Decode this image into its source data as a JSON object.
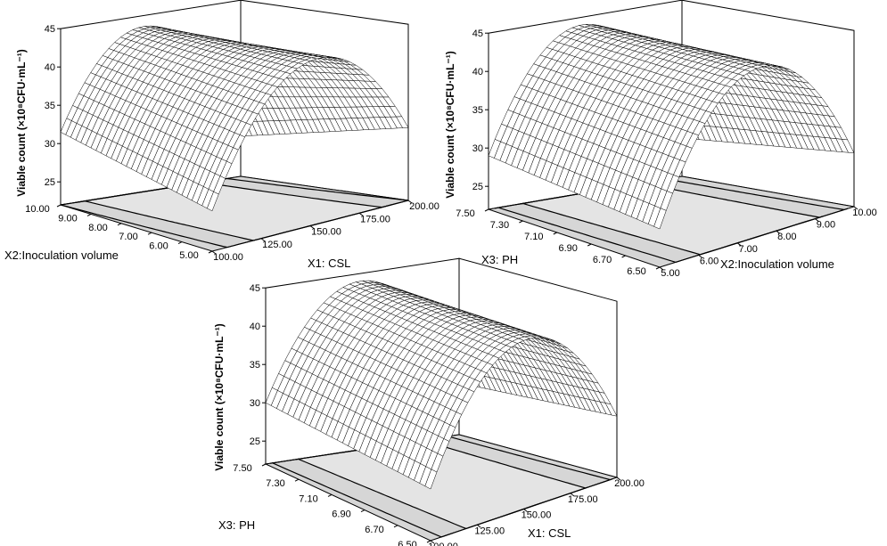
{
  "chart_data": [
    {
      "type": "surface",
      "panel": "top-left",
      "z_label": "Viable count (×10⁸CFU·mL⁻¹)",
      "z_ticks": [
        "25",
        "30",
        "35",
        "40",
        "45"
      ],
      "zlim": [
        22,
        45
      ],
      "x_axis": {
        "label": "X1: CSL",
        "ticks": [
          "100.00",
          "125.00",
          "150.00",
          "175.00",
          "200.00"
        ],
        "range": [
          100,
          200
        ]
      },
      "y_axis": {
        "label": "X2:Inoculation volume",
        "ticks": [
          "5.00",
          "6.00",
          "7.00",
          "8.00",
          "9.00",
          "10.00"
        ],
        "range": [
          5,
          10
        ]
      },
      "corner_values": {
        "x_min_y_min": 22.5,
        "x_max_y_min": 29.5,
        "x_min_y_max": 33.5,
        "x_max_y_max": 32.0
      },
      "optimum": {
        "x": 150,
        "y": 7.5,
        "z": 43.5
      },
      "contour_on_floor": true,
      "grid": true
    },
    {
      "type": "surface",
      "panel": "top-right",
      "z_label": "Viable count (×10⁸CFU·mL⁻¹)",
      "z_ticks": [
        "25",
        "30",
        "35",
        "40",
        "45"
      ],
      "zlim": [
        22,
        45
      ],
      "x_axis": {
        "label": "X2:Inoculation volume",
        "ticks": [
          "5.00",
          "6.00",
          "7.00",
          "8.00",
          "9.00",
          "10.00"
        ],
        "range": [
          5,
          10
        ]
      },
      "y_axis": {
        "label": "X3: PH",
        "ticks": [
          "6.50",
          "6.70",
          "6.90",
          "7.10",
          "7.30",
          "7.50"
        ],
        "range": [
          6.5,
          7.5
        ]
      },
      "corner_values": {
        "x_min_y_min": 23.0,
        "x_max_y_min": 30.0,
        "x_min_y_max": 28.0,
        "x_max_y_max": 31.0
      },
      "optimum": {
        "x": 7.5,
        "y": 7.0,
        "z": 44.0
      },
      "contour_on_floor": true,
      "grid": true
    },
    {
      "type": "surface",
      "panel": "bottom",
      "z_label": "Viable count (×10⁸CFU·mL⁻¹)",
      "z_ticks": [
        "25",
        "30",
        "35",
        "40",
        "45"
      ],
      "zlim": [
        22,
        45
      ],
      "x_axis": {
        "label": "X1: CSL",
        "ticks": [
          "100.00",
          "125.00",
          "150.00",
          "175.00",
          "200.00"
        ],
        "range": [
          100,
          200
        ]
      },
      "y_axis": {
        "label": "X3: PH",
        "ticks": [
          "6.50",
          "6.70",
          "6.90",
          "7.10",
          "7.30",
          "7.50"
        ],
        "range": [
          6.5,
          7.5
        ]
      },
      "corner_values": {
        "x_min_y_min": 27.0,
        "x_max_y_min": 30.0,
        "x_min_y_max": 30.0,
        "x_max_y_max": 30.5
      },
      "optimum": {
        "x": 150,
        "y": 7.0,
        "z": 44.0
      },
      "contour_on_floor": true,
      "grid": true
    }
  ]
}
